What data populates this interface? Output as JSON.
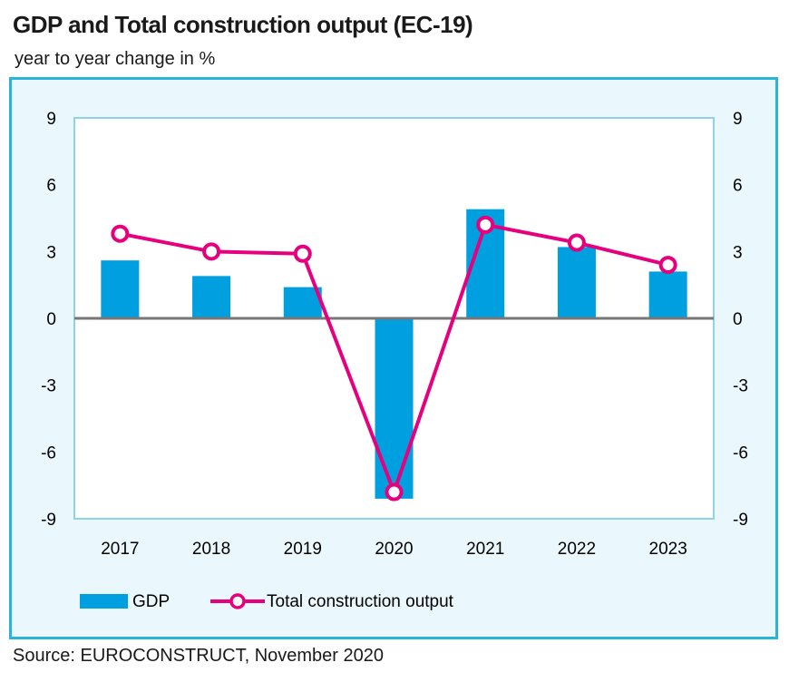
{
  "title": "GDP and Total construction output (EC-19)",
  "subtitle": "year to year change in %",
  "source": "Source: EUROCONSTRUCT, November 2020",
  "colors": {
    "gdp": "#009fe0",
    "construction": "#e6007e",
    "frame": "#29b5d8",
    "panel": "#eaf7fc"
  },
  "chart_data": {
    "type": "bar",
    "categories": [
      "2017",
      "2018",
      "2019",
      "2020",
      "2021",
      "2022",
      "2023"
    ],
    "series": [
      {
        "name": "GDP",
        "type": "bar",
        "values": [
          2.6,
          1.9,
          1.4,
          -8.1,
          4.9,
          3.2,
          2.1
        ]
      },
      {
        "name": "Total construction output",
        "type": "line",
        "values": [
          3.8,
          3.0,
          2.9,
          -7.8,
          4.2,
          3.4,
          2.4
        ]
      }
    ],
    "y_ticks": [
      "9",
      "6",
      "3",
      "0",
      "-3",
      "-6",
      "-9"
    ],
    "ylim": [
      -9,
      9
    ],
    "secondary_y_ticks": [
      "9",
      "6",
      "3",
      "0",
      "-3",
      "-6",
      "-9"
    ],
    "legend_position": "bottom-left",
    "grid": false
  }
}
